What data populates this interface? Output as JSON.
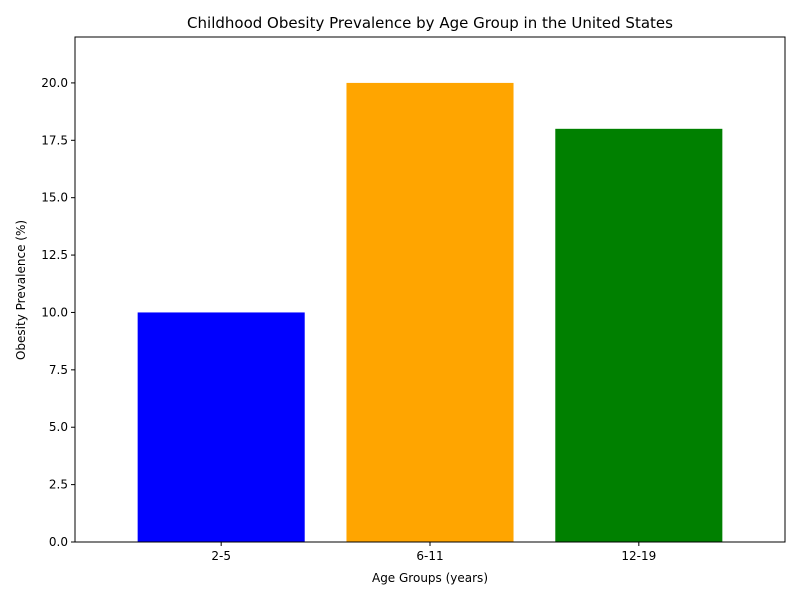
{
  "chart_data": {
    "type": "bar",
    "title": "Childhood Obesity Prevalence by Age Group in the United States",
    "xlabel": "Age Groups (years)",
    "ylabel": "Obesity Prevalence (%)",
    "categories": [
      "2-5",
      "6-11",
      "12-19"
    ],
    "values": [
      10,
      20,
      18
    ],
    "colors": [
      "#0000ff",
      "#ffa500",
      "#008000"
    ],
    "ylim": [
      0,
      22
    ],
    "yticks": [
      "0.0",
      "2.5",
      "5.0",
      "7.5",
      "10.0",
      "12.5",
      "15.0",
      "17.5",
      "20.0"
    ],
    "grid": false,
    "legend": "none"
  }
}
